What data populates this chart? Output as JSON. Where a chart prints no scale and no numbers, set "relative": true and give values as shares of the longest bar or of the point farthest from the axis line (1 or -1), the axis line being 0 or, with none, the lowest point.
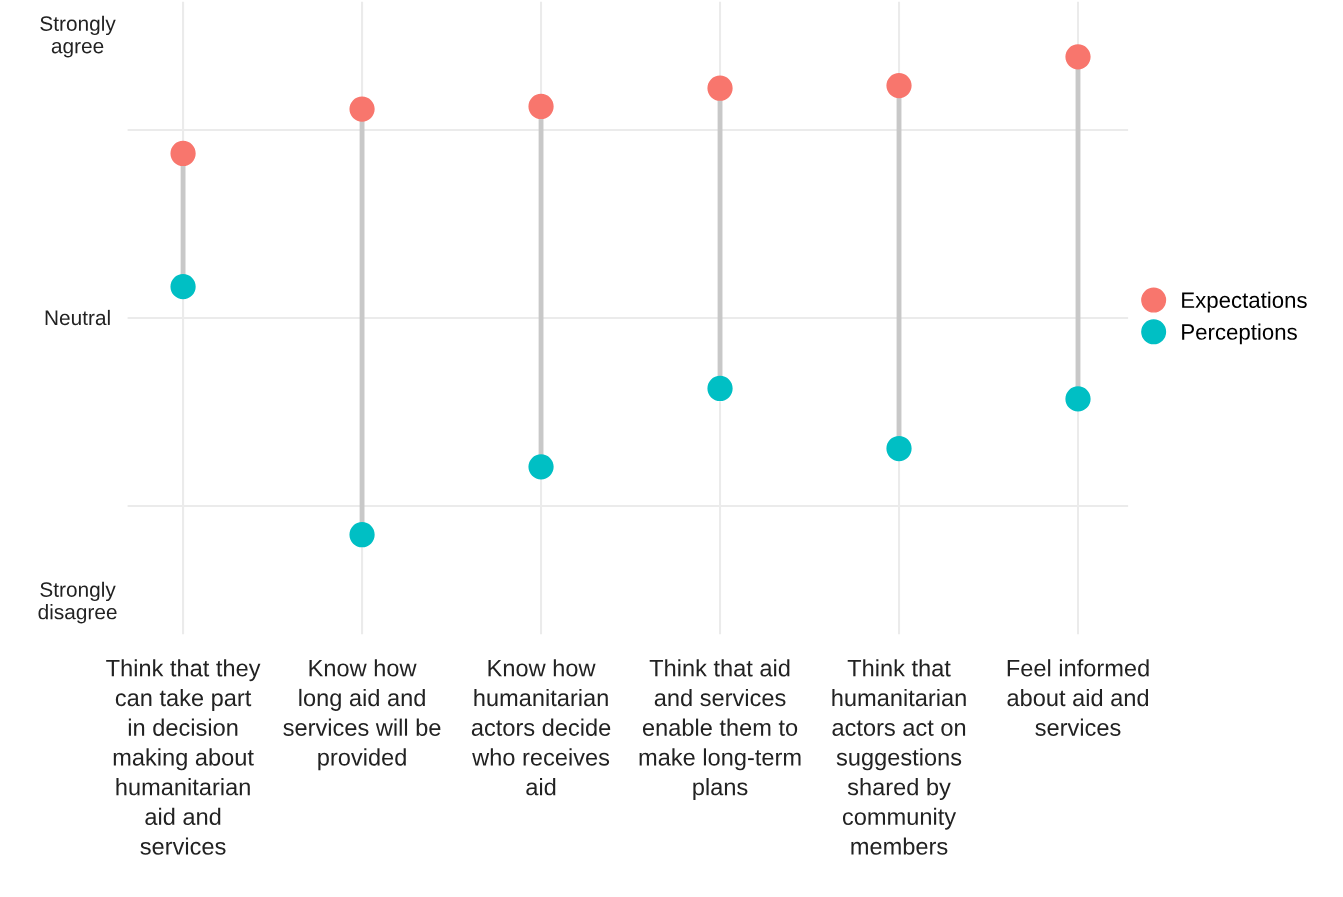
{
  "chart_data": {
    "type": "scatter",
    "categories": [
      "Think that they\ncan take part\nin decision\nmaking about\nhumanitarian\naid and\nservices",
      "Know how\nlong aid and\nservices will be\nprovided",
      "Know how\nhumanitarian\nactors decide\nwho receives\naid",
      "Think that aid\nand services\nenable them to\nmake long-term\nplans",
      "Think that\nhumanitarian\nactors act on\nsuggestions\nshared by\ncommunity\nmembers",
      "Feel informed\nabout aid and\nservices"
    ],
    "relative": true,
    "series": [
      {
        "name": "Expectations",
        "color": "#f8766d",
        "values": [
          0.63,
          0.8,
          0.81,
          0.88,
          0.89,
          1
        ]
      },
      {
        "name": "Perceptions",
        "color": "#00bfc4",
        "values": [
          0.12,
          -0.83,
          -0.57,
          -0.27,
          -0.5,
          -0.31
        ]
      }
    ],
    "annotations": [
      "Strongly\nagree",
      "Neutral",
      "Strongly\ndisagree"
    ],
    "ref_lines": [
      {
        "axis": "y",
        "value": 0.72,
        "color": "#ebebeb"
      },
      {
        "axis": "y",
        "value": 0,
        "color": "#ebebeb"
      },
      {
        "axis": "y",
        "value": -0.72,
        "color": "#ebebeb"
      }
    ],
    "grid": "x",
    "legend": "right",
    "marker": "circle"
  }
}
